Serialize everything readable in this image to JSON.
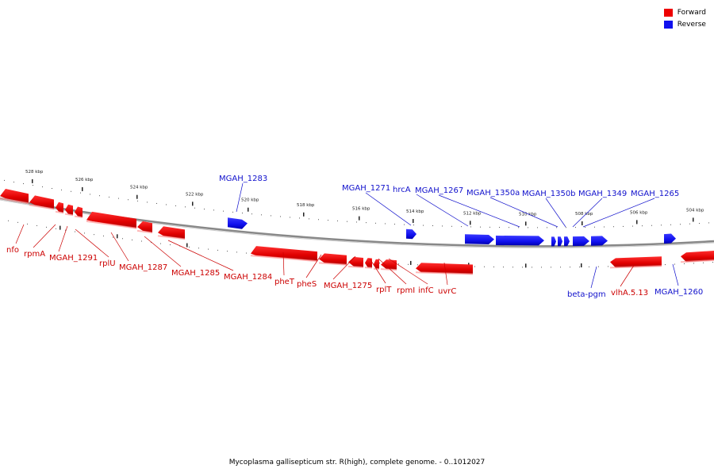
{
  "legend": {
    "forward": {
      "label": "Forward",
      "color": "#ee0000"
    },
    "reverse": {
      "label": "Reverse",
      "color": "#1010ee"
    }
  },
  "footer": "Mycoplasma gallisepticum str. R(high), complete genome. - 0..1012027",
  "kbp_ticks": [
    "528 kbp",
    "526 kbp",
    "524 kbp",
    "522 kbp",
    "520 kbp",
    "518 kbp",
    "516 kbp",
    "514 kbp",
    "512 kbp",
    "510 kbp",
    "508 kbp",
    "506 kbp",
    "504 kbp"
  ],
  "forward_labels": [
    "nfo",
    "rpmA",
    "MGAH_1291",
    "rplU",
    "MGAH_1287",
    "MGAH_1285",
    "MGAH_1284",
    "pheT",
    "pheS",
    "MGAH_1275",
    "rplT",
    "rpmI",
    "infC",
    "uvrC",
    "vlhA.5.13"
  ],
  "reverse_labels": [
    "MGAH_1283",
    "MGAH_1271",
    "hrcA",
    "MGAH_1267",
    "MGAH_1350a",
    "MGAH_1350b",
    "MGAH_1349",
    "MGAH_1265",
    "beta-pgm",
    "MGAH_1260"
  ]
}
